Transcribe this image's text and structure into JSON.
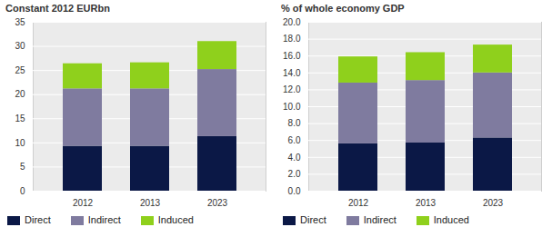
{
  "chart_data": [
    {
      "type": "bar",
      "stacked": true,
      "title": "Constant 2012 EURbn",
      "categories": [
        "2012",
        "2013",
        "2023"
      ],
      "series": [
        {
          "name": "Direct",
          "color": "#0b1846",
          "values": [
            9.3,
            9.3,
            11.3
          ]
        },
        {
          "name": "Indirect",
          "color": "#7f7b9f",
          "values": [
            11.9,
            11.9,
            13.9
          ]
        },
        {
          "name": "Induced",
          "color": "#8fd01c",
          "values": [
            5.2,
            5.4,
            5.8
          ]
        }
      ],
      "ylim": [
        0,
        35
      ],
      "yticks": [
        0,
        5,
        10,
        15,
        20,
        25,
        30,
        35
      ],
      "grid": true,
      "legend": "bottom"
    },
    {
      "type": "bar",
      "stacked": true,
      "title": "% of whole economy GDP",
      "categories": [
        "2012",
        "2013",
        "2023"
      ],
      "series": [
        {
          "name": "Direct",
          "color": "#0b1846",
          "values": [
            5.6,
            5.7,
            6.3
          ]
        },
        {
          "name": "Indirect",
          "color": "#7f7b9f",
          "values": [
            7.2,
            7.4,
            7.7
          ]
        },
        {
          "name": "Induced",
          "color": "#8fd01c",
          "values": [
            3.1,
            3.3,
            3.3
          ]
        }
      ],
      "ylim": [
        0,
        20
      ],
      "yticks": [
        {
          "value": 0,
          "label": "0.0"
        },
        {
          "value": 2,
          "label": "2.0"
        },
        {
          "value": 4,
          "label": "4.0"
        },
        {
          "value": 6,
          "label": "6.0"
        },
        {
          "value": 8,
          "label": "8.0"
        },
        {
          "value": 10,
          "label": "10.0"
        },
        {
          "value": 12,
          "label": "12.0"
        },
        {
          "value": 14,
          "label": "14.0"
        },
        {
          "value": 16,
          "label": "16.0"
        },
        {
          "value": 18,
          "label": "18.0"
        },
        {
          "value": 20,
          "label": "20.0"
        }
      ],
      "grid": true,
      "legend": "bottom"
    }
  ]
}
